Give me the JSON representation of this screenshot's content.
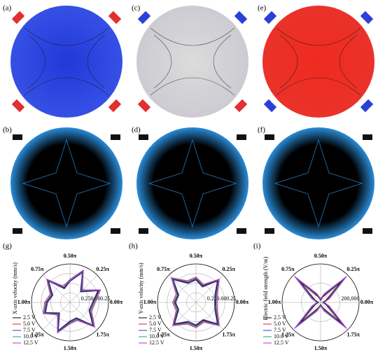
{
  "panels": [
    "(a)",
    "(b)",
    "(c)",
    "(d)",
    "(e)",
    "(f)"
  ],
  "chart_data": [
    {
      "type": "polar",
      "panel": "(g)",
      "r_label": "X-axis velocity (mm/s)",
      "theta": [
        0,
        0.125,
        0.25,
        0.375,
        0.5,
        0.625,
        0.75,
        0.875,
        1,
        1.125,
        1.25,
        1.375,
        1.5,
        1.625,
        1.75,
        1.875
      ],
      "rlim": [
        -0.5,
        0.5
      ],
      "rticks": [
        {
          "value": -0.25,
          "label": "0.25"
        },
        {
          "value": 0,
          "label": "0.00"
        },
        {
          "value": 0.25,
          "label": "0.25"
        }
      ],
      "angle_ticks": [
        {
          "value": 0,
          "label": "0.00π"
        },
        {
          "value": 0.25,
          "label": "0.25π"
        },
        {
          "value": 0.5,
          "label": "0.50π"
        },
        {
          "value": 0.75,
          "label": "0.75π"
        },
        {
          "value": 1,
          "label": "1.00π"
        },
        {
          "value": 1.25,
          "label": "1.25π"
        },
        {
          "value": 1.5,
          "label": "1.50π"
        },
        {
          "value": 1.75,
          "label": "1.75π"
        }
      ],
      "series": [
        {
          "name": "2.5 V",
          "color": "#000000",
          "values": [
            0.1,
            0.3,
            -0.1,
            0.35,
            0.05,
            -0.1,
            0.3,
            0.0,
            0.1,
            0.2,
            -0.1,
            0.3,
            0.0,
            -0.05,
            0.35,
            0.05
          ]
        },
        {
          "name": "5.0 V",
          "color": "#e0182a",
          "values": [
            0.12,
            0.32,
            -0.08,
            0.37,
            0.06,
            -0.08,
            0.32,
            0.02,
            0.12,
            0.22,
            -0.08,
            0.32,
            0.02,
            -0.03,
            0.37,
            0.07
          ]
        },
        {
          "name": "7.5 V",
          "color": "#1f3fd8",
          "values": [
            0.08,
            0.28,
            -0.12,
            0.33,
            0.04,
            -0.12,
            0.28,
            -0.02,
            0.08,
            0.18,
            -0.12,
            0.28,
            -0.02,
            -0.07,
            0.33,
            0.03
          ]
        },
        {
          "name": "10.0 V",
          "color": "#1aa37a",
          "values": [
            0.14,
            0.34,
            -0.06,
            0.39,
            0.08,
            -0.06,
            0.34,
            0.04,
            0.14,
            0.24,
            -0.06,
            0.34,
            0.04,
            -0.01,
            0.39,
            0.09
          ]
        },
        {
          "name": "12.5 V",
          "color": "#b52fd0",
          "values": [
            0.16,
            0.36,
            -0.04,
            0.41,
            0.1,
            -0.04,
            0.36,
            0.06,
            0.16,
            0.26,
            -0.04,
            0.36,
            0.06,
            0.01,
            0.41,
            0.11
          ]
        }
      ]
    },
    {
      "type": "polar",
      "panel": "(h)",
      "r_label": "Y-axis velocity (mm/s)",
      "theta": [
        0,
        0.125,
        0.25,
        0.375,
        0.5,
        0.625,
        0.75,
        0.875,
        1,
        1.125,
        1.25,
        1.375,
        1.5,
        1.625,
        1.75,
        1.875
      ],
      "rlim": [
        -0.5,
        0.5
      ],
      "rticks": [
        {
          "value": -0.25,
          "label": "0.25"
        },
        {
          "value": 0,
          "label": "0.00"
        },
        {
          "value": 0.25,
          "label": "0.25"
        }
      ],
      "angle_ticks": [
        {
          "value": 0,
          "label": "0.00π"
        },
        {
          "value": 0.25,
          "label": "0.25π"
        },
        {
          "value": 0.5,
          "label": "0.50π"
        },
        {
          "value": 0.75,
          "label": "0.75π"
        },
        {
          "value": 1,
          "label": "1.00π"
        },
        {
          "value": 1.25,
          "label": "1.25π"
        },
        {
          "value": 1.5,
          "label": "1.50π"
        },
        {
          "value": 1.75,
          "label": "1.75π"
        }
      ],
      "series": [
        {
          "name": "2.5 V",
          "color": "#000000",
          "values": [
            0.0,
            0.05,
            0.3,
            -0.05,
            0.1,
            0.05,
            0.35,
            0.0,
            0.05,
            0.0,
            0.3,
            0.05,
            0.1,
            0.0,
            0.3,
            0.05
          ]
        },
        {
          "name": "5.0 V",
          "color": "#e0182a",
          "values": [
            0.02,
            0.07,
            0.32,
            -0.03,
            0.12,
            0.07,
            0.37,
            0.02,
            0.07,
            0.02,
            0.32,
            0.07,
            0.12,
            0.02,
            0.32,
            0.07
          ]
        },
        {
          "name": "7.5 V",
          "color": "#1f3fd8",
          "values": [
            -0.02,
            0.03,
            0.28,
            -0.07,
            0.08,
            0.03,
            0.33,
            -0.02,
            0.03,
            -0.02,
            0.28,
            0.03,
            0.08,
            -0.02,
            0.28,
            0.03
          ]
        },
        {
          "name": "10.0 V",
          "color": "#1aa37a",
          "values": [
            0.04,
            0.09,
            0.34,
            -0.01,
            0.14,
            0.09,
            0.39,
            0.04,
            0.09,
            0.04,
            0.34,
            0.09,
            0.14,
            0.04,
            0.34,
            0.09
          ]
        },
        {
          "name": "12.5 V",
          "color": "#b52fd0",
          "values": [
            0.06,
            0.11,
            0.36,
            0.01,
            0.16,
            0.11,
            0.41,
            0.06,
            0.11,
            0.06,
            0.36,
            0.11,
            0.16,
            0.06,
            0.36,
            0.11
          ]
        }
      ]
    },
    {
      "type": "polar",
      "panel": "(i)",
      "r_label": "Electric field strength (V/m)",
      "theta": [
        0,
        0.125,
        0.25,
        0.375,
        0.5,
        0.625,
        0.75,
        0.875,
        1,
        1.125,
        1.25,
        1.375,
        1.5,
        1.625,
        1.75,
        1.875
      ],
      "rlim": [
        0,
        400000
      ],
      "rticks": [
        {
          "value": 200000,
          "label": "200,000"
        }
      ],
      "angle_ticks": [
        {
          "value": 0,
          "label": "0.00π"
        },
        {
          "value": 0.25,
          "label": "0.25π"
        },
        {
          "value": 0.5,
          "label": "0.50π"
        },
        {
          "value": 0.75,
          "label": "0.75π"
        },
        {
          "value": 1,
          "label": "1.00π"
        },
        {
          "value": 1.25,
          "label": "1.25π"
        },
        {
          "value": 1.5,
          "label": "1.50π"
        },
        {
          "value": 1.75,
          "label": "1.75π"
        }
      ],
      "series": [
        {
          "name": "2.5 V",
          "color": "#000000",
          "values": [
            20000,
            60000,
            300000,
            60000,
            20000,
            60000,
            300000,
            60000,
            20000,
            60000,
            300000,
            60000,
            20000,
            60000,
            300000,
            60000
          ]
        },
        {
          "name": "5.0 V",
          "color": "#e0182a",
          "values": [
            25000,
            70000,
            330000,
            70000,
            25000,
            70000,
            330000,
            70000,
            25000,
            70000,
            330000,
            70000,
            25000,
            70000,
            330000,
            70000
          ]
        },
        {
          "name": "7.5 V",
          "color": "#1f3fd8",
          "values": [
            30000,
            80000,
            350000,
            80000,
            30000,
            80000,
            350000,
            80000,
            30000,
            80000,
            350000,
            80000,
            30000,
            80000,
            350000,
            80000
          ]
        },
        {
          "name": "10.0 V",
          "color": "#1aa37a",
          "values": [
            35000,
            90000,
            370000,
            90000,
            35000,
            90000,
            370000,
            90000,
            35000,
            90000,
            370000,
            90000,
            35000,
            90000,
            370000,
            90000
          ]
        },
        {
          "name": "12.5 V",
          "color": "#b52fd0",
          "values": [
            40000,
            100000,
            385000,
            100000,
            40000,
            100000,
            385000,
            100000,
            40000,
            100000,
            385000,
            100000,
            40000,
            100000,
            385000,
            100000
          ]
        }
      ]
    }
  ]
}
